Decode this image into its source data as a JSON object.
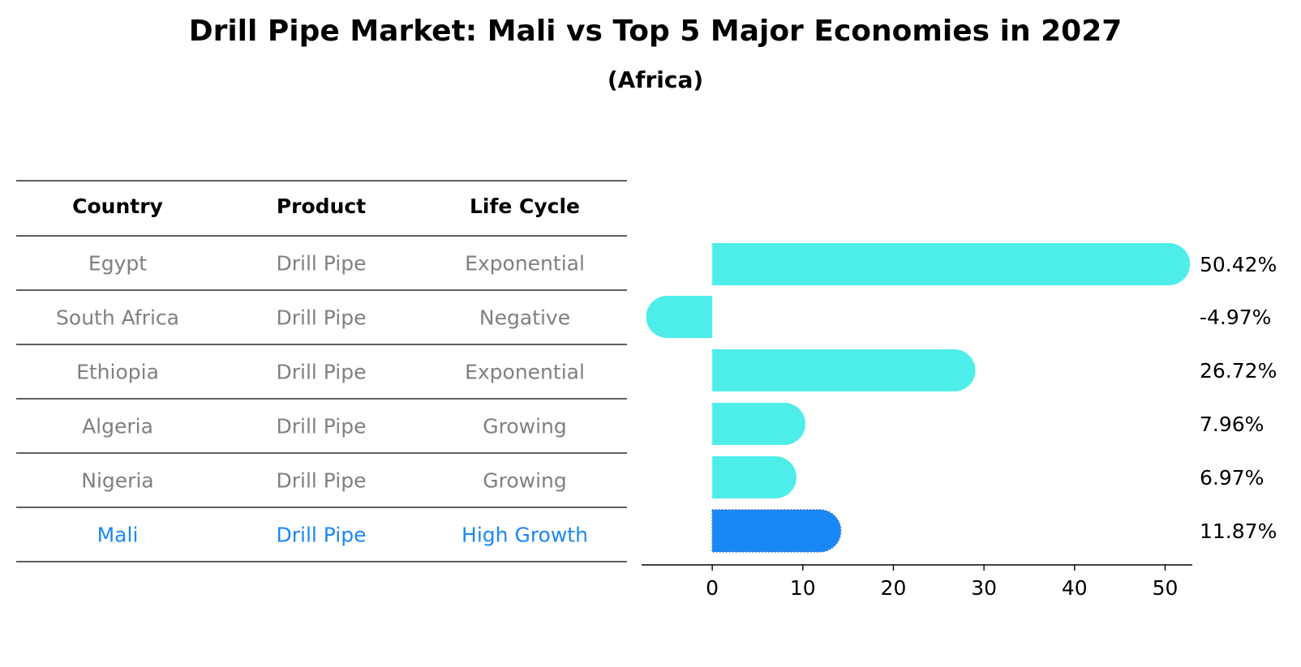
{
  "title": "Drill Pipe Market: Mali vs Top 5 Major Economies in 2027",
  "subtitle": "(Africa)",
  "table": {
    "headers": [
      "Country",
      "Product",
      "Life Cycle"
    ],
    "rows": [
      {
        "country": "Egypt",
        "product": "Drill Pipe",
        "life_cycle": "Exponential",
        "highlight": false
      },
      {
        "country": "South Africa",
        "product": "Drill Pipe",
        "life_cycle": "Negative",
        "highlight": false
      },
      {
        "country": "Ethiopia",
        "product": "Drill Pipe",
        "life_cycle": "Exponential",
        "highlight": false
      },
      {
        "country": "Algeria",
        "product": "Drill Pipe",
        "life_cycle": "Growing",
        "highlight": false
      },
      {
        "country": "Nigeria",
        "product": "Drill Pipe",
        "life_cycle": "Growing",
        "highlight": false
      },
      {
        "country": "Mali",
        "product": "Drill Pipe",
        "life_cycle": "High Growth",
        "highlight": true
      }
    ]
  },
  "colors": {
    "bar": "#4deeea",
    "highlight": "#1a88f4",
    "row_text": "#808080",
    "text": "#000000",
    "rule": "#000000"
  },
  "chart_data": {
    "type": "bar",
    "orientation": "horizontal",
    "title": "Drill Pipe Market: Mali vs Top 5 Major Economies in 2027",
    "subtitle": "(Africa)",
    "categories": [
      "Egypt",
      "South Africa",
      "Ethiopia",
      "Algeria",
      "Nigeria",
      "Mali"
    ],
    "values": [
      50.42,
      -4.97,
      26.72,
      7.96,
      6.97,
      11.87
    ],
    "value_labels": [
      "50.42%",
      "-4.97%",
      "26.72%",
      "7.96%",
      "6.97%",
      "11.87%"
    ],
    "highlight_category": "Mali",
    "xlim": [
      -7.8,
      53.0
    ],
    "xticks": [
      0,
      10,
      20,
      30,
      40,
      50
    ],
    "xlabel": "",
    "ylabel": "",
    "grid": false
  }
}
